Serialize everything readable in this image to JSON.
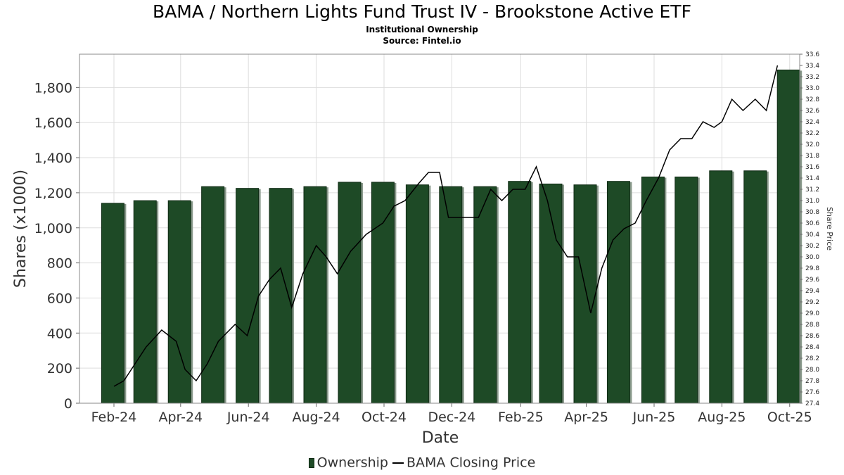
{
  "title": "BAMA / Northern Lights Fund Trust IV - Brookstone Active ETF",
  "subtitle": "Institutional Ownership",
  "source": "Source: Fintel.io",
  "colors": {
    "bar": "#1e4a26",
    "bar_shadow": "#8a9a8c",
    "line": "#000000",
    "grid": "#dddddd"
  },
  "legend": {
    "ownership": "Ownership",
    "price": "BAMA Closing Price"
  },
  "chart_data": {
    "type": "bar",
    "title": "BAMA / Northern Lights Fund Trust IV - Brookstone Active ETF",
    "xlabel": "Date",
    "ylabel": "Shares (x1000)",
    "y2label": "Share Price",
    "xlim": [
      "2024-01-01",
      "2025-10-10"
    ],
    "ylim": [
      0,
      1990
    ],
    "y2lim": [
      27.4,
      33.6
    ],
    "grid": true,
    "legend_position": "bottom",
    "x_ticks": [
      "Feb-24",
      "Apr-24",
      "Jun-24",
      "Aug-24",
      "Oct-24",
      "Dec-24",
      "Feb-25",
      "Apr-25",
      "Jun-25",
      "Aug-25",
      "Oct-25"
    ],
    "x_tick_dates": [
      "2024-02-01",
      "2024-04-01",
      "2024-06-01",
      "2024-08-01",
      "2024-10-01",
      "2024-12-01",
      "2025-02-01",
      "2025-04-01",
      "2025-06-01",
      "2025-08-01",
      "2025-10-01"
    ],
    "y_ticks": [
      0,
      200,
      400,
      600,
      800,
      1000,
      1200,
      1400,
      1600,
      1800
    ],
    "y_tick_labels": [
      "0",
      "200",
      "400",
      "600",
      "800",
      "1,000",
      "1,200",
      "1,400",
      "1,600",
      "1,800"
    ],
    "y2_ticks": [
      27.4,
      27.6,
      27.8,
      28.0,
      28.2,
      28.4,
      28.6,
      28.8,
      29.0,
      29.2,
      29.4,
      29.6,
      29.8,
      30.0,
      30.2,
      30.4,
      30.6,
      30.8,
      31.0,
      31.2,
      31.4,
      31.6,
      31.8,
      32.0,
      32.2,
      32.4,
      32.6,
      32.8,
      33.0,
      33.2,
      33.4,
      33.6
    ],
    "y2_tick_labels": [
      "27.4",
      "27.6",
      "27.8",
      "28.0",
      "28.2",
      "28.4",
      "28.6",
      "28.8",
      "29.0",
      "29.2",
      "29.4",
      "29.6",
      "29.8",
      "30.0",
      "30.2",
      "30.4",
      "30.6",
      "30.8",
      "31.0",
      "31.2",
      "31.4",
      "31.6",
      "31.8",
      "32.0",
      "32.2",
      "32.4",
      "32.6",
      "32.8",
      "33.0",
      "33.2",
      "33.4",
      "33.6"
    ],
    "series": [
      {
        "name": "Ownership",
        "type": "bar",
        "x": [
          "2024-01-31",
          "2024-02-29",
          "2024-03-31",
          "2024-04-30",
          "2024-05-31",
          "2024-06-30",
          "2024-07-31",
          "2024-08-31",
          "2024-09-30",
          "2024-10-31",
          "2024-11-30",
          "2024-12-31",
          "2025-01-31",
          "2025-02-28",
          "2025-03-31",
          "2025-04-30",
          "2025-05-31",
          "2025-06-30",
          "2025-07-31",
          "2025-08-31",
          "2025-09-30"
        ],
        "values": [
          1140,
          1155,
          1155,
          1235,
          1225,
          1225,
          1235,
          1260,
          1260,
          1245,
          1235,
          1235,
          1265,
          1250,
          1245,
          1265,
          1290,
          1290,
          1325,
          1325,
          1900
        ]
      },
      {
        "name": "BAMA Closing Price",
        "type": "line",
        "x": [
          "2024-02-01",
          "2024-02-10",
          "2024-02-20",
          "2024-03-01",
          "2024-03-15",
          "2024-03-28",
          "2024-04-05",
          "2024-04-15",
          "2024-04-25",
          "2024-05-05",
          "2024-05-20",
          "2024-05-31",
          "2024-06-10",
          "2024-06-20",
          "2024-06-30",
          "2024-07-10",
          "2024-07-20",
          "2024-08-01",
          "2024-08-10",
          "2024-08-20",
          "2024-09-01",
          "2024-09-15",
          "2024-09-30",
          "2024-10-10",
          "2024-10-20",
          "2024-11-01",
          "2024-11-10",
          "2024-11-20",
          "2024-11-28",
          "2024-12-05",
          "2024-12-15",
          "2024-12-25",
          "2025-01-05",
          "2025-01-15",
          "2025-01-25",
          "2025-02-05",
          "2025-02-15",
          "2025-02-25",
          "2025-03-05",
          "2025-03-15",
          "2025-03-25",
          "2025-04-05",
          "2025-04-15",
          "2025-04-25",
          "2025-05-05",
          "2025-05-15",
          "2025-05-25",
          "2025-06-05",
          "2025-06-15",
          "2025-06-25",
          "2025-07-05",
          "2025-07-15",
          "2025-07-25",
          "2025-08-01",
          "2025-08-10",
          "2025-08-20",
          "2025-08-31",
          "2025-09-10",
          "2025-09-20"
        ],
        "values": [
          27.7,
          27.8,
          28.1,
          28.4,
          28.7,
          28.5,
          28.0,
          27.8,
          28.1,
          28.5,
          28.8,
          28.6,
          29.3,
          29.6,
          29.8,
          29.1,
          29.7,
          30.2,
          30.0,
          29.7,
          30.1,
          30.4,
          30.6,
          30.9,
          31.0,
          31.3,
          31.5,
          31.5,
          30.7,
          30.7,
          30.7,
          30.7,
          31.2,
          31.0,
          31.2,
          31.2,
          31.6,
          31.0,
          30.3,
          30.0,
          30.0,
          29.0,
          29.8,
          30.3,
          30.5,
          30.6,
          31.0,
          31.4,
          31.9,
          32.1,
          32.1,
          32.4,
          32.3,
          32.4,
          32.8,
          32.6,
          32.8,
          32.6,
          33.4
        ]
      }
    ]
  }
}
